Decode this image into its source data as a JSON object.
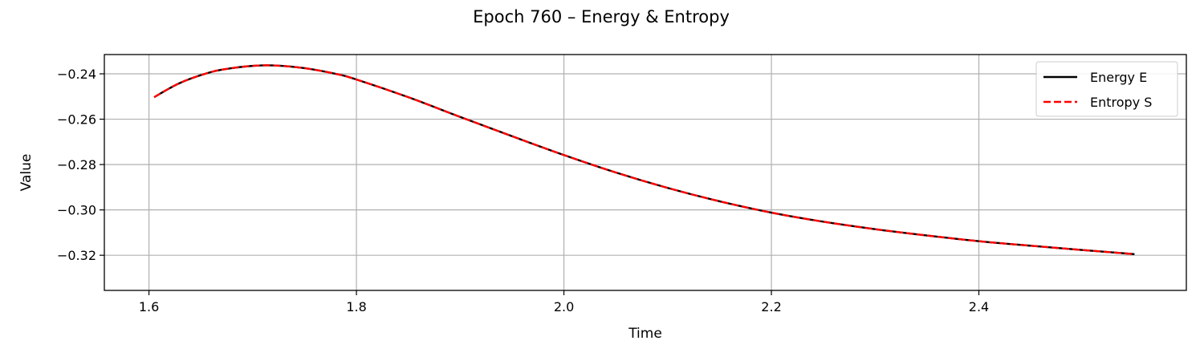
{
  "chart_data": {
    "type": "line",
    "title": "Epoch 760 – Energy & Entropy",
    "xlabel": "Time",
    "ylabel": "Value",
    "xlim": [
      1.557,
      2.6
    ],
    "ylim": [
      -0.3355,
      -0.2315
    ],
    "xticks": [
      1.6,
      1.8,
      2.0,
      2.2,
      2.4
    ],
    "xtick_labels": [
      "1.6",
      "1.8",
      "2.0",
      "2.2",
      "2.4"
    ],
    "yticks": [
      -0.24,
      -0.26,
      -0.28,
      -0.3,
      -0.32
    ],
    "ytick_labels": [
      "−0.24",
      "−0.26",
      "−0.28",
      "−0.30",
      "−0.32"
    ],
    "grid": true,
    "legend_position": "top-right",
    "x": [
      1.605,
      1.63,
      1.66,
      1.68,
      1.7,
      1.72,
      1.75,
      1.78,
      1.8,
      1.85,
      1.9,
      1.95,
      2.0,
      2.05,
      2.1,
      2.15,
      2.2,
      2.25,
      2.3,
      2.35,
      2.4,
      2.45,
      2.5,
      2.55
    ],
    "series": [
      {
        "name": "Energy E",
        "color": "#000000",
        "dash": "solid",
        "values": [
          -0.2503,
          -0.244,
          -0.2392,
          -0.2375,
          -0.2365,
          -0.2363,
          -0.2375,
          -0.24,
          -0.2425,
          -0.2503,
          -0.259,
          -0.2675,
          -0.2758,
          -0.2835,
          -0.2903,
          -0.2962,
          -0.3012,
          -0.3052,
          -0.3085,
          -0.3113,
          -0.3138,
          -0.3158,
          -0.3177,
          -0.3195
        ]
      },
      {
        "name": "Entropy S",
        "color": "#ff0000",
        "dash": "dashed",
        "values": [
          -0.2503,
          -0.244,
          -0.2392,
          -0.2375,
          -0.2365,
          -0.2363,
          -0.2375,
          -0.24,
          -0.2425,
          -0.2503,
          -0.259,
          -0.2675,
          -0.2758,
          -0.2835,
          -0.2903,
          -0.2962,
          -0.3012,
          -0.3052,
          -0.3085,
          -0.3113,
          -0.3138,
          -0.3158,
          -0.3177,
          -0.3195
        ]
      }
    ]
  }
}
